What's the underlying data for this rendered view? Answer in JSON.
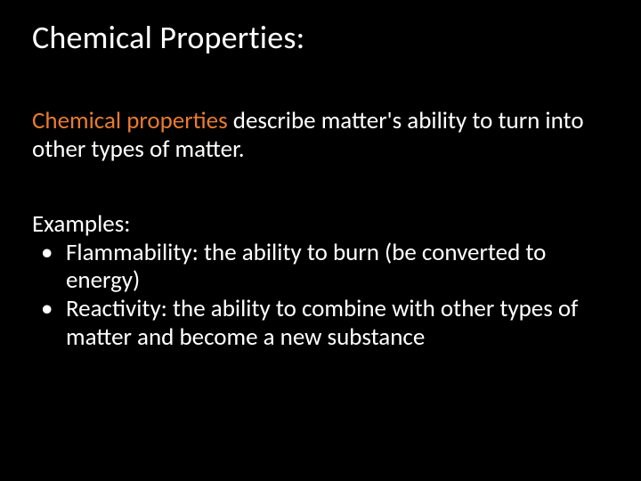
{
  "colors": {
    "background": "#000000",
    "text": "#ffffff",
    "highlight": "#e87b2f"
  },
  "typography": {
    "title_fontsize": 36,
    "body_fontsize": 27,
    "font_family": "Calibri"
  },
  "title": "Chemical Properties:",
  "definition": {
    "highlight_term": "Chemical properties",
    "rest": " describe matter's ability to turn into other types of matter."
  },
  "examples": {
    "label": "Examples:",
    "items": [
      {
        "term": "Flammability:",
        "desc": " the ability to burn (be converted to energy)"
      },
      {
        "term": "Reactivity:",
        "desc": " the ability to combine with other types of matter and become a new substance"
      }
    ]
  }
}
